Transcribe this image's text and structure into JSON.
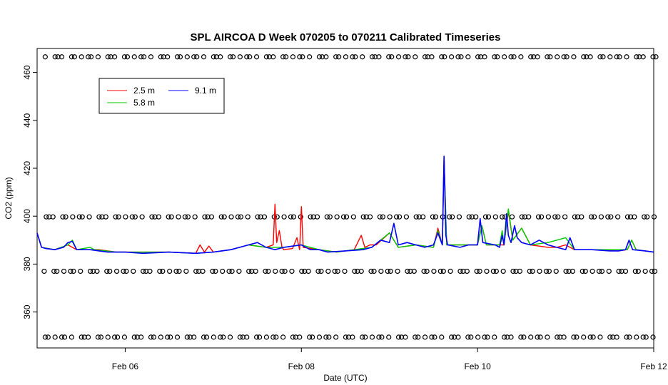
{
  "chart_data": {
    "type": "line",
    "title": "SPL AIRCOA D  Week 070205 to 070211  Calibrated Timeseries",
    "xlabel": "Date (UTC)",
    "ylabel": "CO2 (ppm)",
    "xlim": [
      5.0,
      12.0
    ],
    "ylim": [
      345,
      470
    ],
    "x_ticks": [
      {
        "value": 6,
        "label": "Feb 06"
      },
      {
        "value": 8,
        "label": "Feb 08"
      },
      {
        "value": 10,
        "label": "Feb 10"
      },
      {
        "value": 12,
        "label": "Feb 12"
      }
    ],
    "y_ticks": [
      360,
      380,
      400,
      420,
      440,
      460
    ],
    "legend": {
      "position": "top-left",
      "entries": [
        {
          "label": "2.5 m",
          "color": "#ff0000"
        },
        {
          "label": "5.8 m",
          "color": "#00cc00"
        },
        {
          "label": "9.1 m",
          "color": "#0000ff"
        }
      ]
    },
    "calibration_levels": [
      466.5,
      399.7,
      377.0,
      349.5
    ],
    "calibration_x_start": 5.08,
    "calibration_x_end": 12.0,
    "calibration_x_step": 0.1,
    "series": [
      {
        "name": "2.5 m",
        "color": "#ff0000",
        "points": [
          [
            5.0,
            393
          ],
          [
            5.05,
            387
          ],
          [
            5.2,
            386
          ],
          [
            5.35,
            388
          ],
          [
            5.45,
            386
          ],
          [
            5.7,
            386
          ],
          [
            5.9,
            385
          ],
          [
            6.2,
            385
          ],
          [
            6.5,
            385
          ],
          [
            6.8,
            384.5
          ],
          [
            6.85,
            388
          ],
          [
            6.9,
            385
          ],
          [
            6.95,
            387.5
          ],
          [
            7.0,
            385
          ],
          [
            7.2,
            386
          ],
          [
            7.4,
            388
          ],
          [
            7.6,
            387
          ],
          [
            7.68,
            388
          ],
          [
            7.7,
            405
          ],
          [
            7.72,
            389
          ],
          [
            7.75,
            394
          ],
          [
            7.78,
            387
          ],
          [
            7.8,
            386
          ],
          [
            7.9,
            386.5
          ],
          [
            7.95,
            391
          ],
          [
            7.98,
            386
          ],
          [
            8.0,
            404
          ],
          [
            8.02,
            387
          ],
          [
            8.2,
            386
          ],
          [
            8.4,
            385
          ],
          [
            8.6,
            386
          ],
          [
            8.68,
            392
          ],
          [
            8.72,
            387
          ],
          [
            8.78,
            388
          ],
          [
            8.85,
            388
          ],
          [
            9.0,
            393
          ],
          [
            9.1,
            387
          ],
          [
            9.3,
            388
          ],
          [
            9.5,
            387
          ],
          [
            9.55,
            395
          ],
          [
            9.6,
            388
          ],
          [
            9.62,
            425
          ],
          [
            9.65,
            388
          ],
          [
            10.0,
            388
          ],
          [
            10.05,
            396
          ],
          [
            10.1,
            388
          ],
          [
            10.3,
            388
          ],
          [
            10.35,
            402
          ],
          [
            10.4,
            390
          ],
          [
            10.5,
            395
          ],
          [
            10.6,
            388
          ],
          [
            10.8,
            387
          ],
          [
            10.9,
            387
          ],
          [
            11.0,
            388
          ],
          [
            11.1,
            386
          ],
          [
            11.3,
            386
          ],
          [
            11.6,
            385.5
          ],
          [
            11.7,
            386
          ],
          [
            11.75,
            390
          ],
          [
            11.8,
            386
          ],
          [
            12.0,
            385
          ]
        ]
      },
      {
        "name": "5.8 m",
        "color": "#00cc00",
        "points": [
          [
            5.0,
            393
          ],
          [
            5.05,
            387
          ],
          [
            5.2,
            386
          ],
          [
            5.35,
            388
          ],
          [
            5.4,
            390
          ],
          [
            5.45,
            386
          ],
          [
            5.6,
            387
          ],
          [
            5.65,
            386
          ],
          [
            5.9,
            385
          ],
          [
            6.2,
            385
          ],
          [
            6.5,
            385
          ],
          [
            6.8,
            384.5
          ],
          [
            7.0,
            385
          ],
          [
            7.2,
            386
          ],
          [
            7.4,
            388
          ],
          [
            7.6,
            387
          ],
          [
            7.8,
            387
          ],
          [
            8.0,
            388
          ],
          [
            8.2,
            386
          ],
          [
            8.4,
            385
          ],
          [
            8.6,
            386
          ],
          [
            8.8,
            387
          ],
          [
            9.0,
            393
          ],
          [
            9.1,
            387
          ],
          [
            9.3,
            388
          ],
          [
            9.5,
            387
          ],
          [
            9.55,
            394
          ],
          [
            9.6,
            388
          ],
          [
            9.62,
            424
          ],
          [
            9.65,
            388
          ],
          [
            10.0,
            388
          ],
          [
            10.05,
            396
          ],
          [
            10.1,
            388
          ],
          [
            10.25,
            388
          ],
          [
            10.28,
            394
          ],
          [
            10.3,
            388
          ],
          [
            10.35,
            403
          ],
          [
            10.4,
            390
          ],
          [
            10.5,
            395
          ],
          [
            10.6,
            388
          ],
          [
            10.8,
            389
          ],
          [
            11.0,
            391
          ],
          [
            11.1,
            386
          ],
          [
            11.3,
            386
          ],
          [
            11.6,
            386
          ],
          [
            11.7,
            386
          ],
          [
            11.75,
            390
          ],
          [
            11.8,
            386
          ],
          [
            12.0,
            385
          ]
        ]
      },
      {
        "name": "9.1 m",
        "color": "#0000ff",
        "points": [
          [
            5.0,
            393
          ],
          [
            5.05,
            387
          ],
          [
            5.1,
            386.5
          ],
          [
            5.2,
            386
          ],
          [
            5.3,
            387
          ],
          [
            5.35,
            389
          ],
          [
            5.4,
            389.5
          ],
          [
            5.45,
            386
          ],
          [
            5.6,
            386
          ],
          [
            5.8,
            385
          ],
          [
            6.0,
            385
          ],
          [
            6.2,
            384.5
          ],
          [
            6.5,
            385
          ],
          [
            6.8,
            384.5
          ],
          [
            7.0,
            385
          ],
          [
            7.2,
            386
          ],
          [
            7.3,
            387
          ],
          [
            7.4,
            388
          ],
          [
            7.5,
            389
          ],
          [
            7.6,
            387
          ],
          [
            7.7,
            386
          ],
          [
            7.8,
            387
          ],
          [
            7.9,
            387.5
          ],
          [
            8.0,
            388
          ],
          [
            8.1,
            386
          ],
          [
            8.2,
            386
          ],
          [
            8.3,
            385
          ],
          [
            8.5,
            385.5
          ],
          [
            8.7,
            386
          ],
          [
            8.8,
            387
          ],
          [
            8.9,
            390
          ],
          [
            9.0,
            389
          ],
          [
            9.05,
            397
          ],
          [
            9.1,
            388
          ],
          [
            9.2,
            389
          ],
          [
            9.3,
            388
          ],
          [
            9.4,
            387
          ],
          [
            9.5,
            388
          ],
          [
            9.55,
            393
          ],
          [
            9.6,
            388
          ],
          [
            9.62,
            425
          ],
          [
            9.64,
            392
          ],
          [
            9.66,
            388
          ],
          [
            9.8,
            387
          ],
          [
            9.9,
            388
          ],
          [
            10.0,
            388
          ],
          [
            10.03,
            399
          ],
          [
            10.06,
            389
          ],
          [
            10.2,
            388
          ],
          [
            10.25,
            387
          ],
          [
            10.28,
            392
          ],
          [
            10.3,
            388
          ],
          [
            10.33,
            401
          ],
          [
            10.35,
            392
          ],
          [
            10.38,
            389
          ],
          [
            10.42,
            396
          ],
          [
            10.45,
            391
          ],
          [
            10.5,
            389
          ],
          [
            10.6,
            388
          ],
          [
            10.7,
            390
          ],
          [
            10.8,
            388
          ],
          [
            10.9,
            387
          ],
          [
            11.0,
            386
          ],
          [
            11.05,
            391
          ],
          [
            11.1,
            386
          ],
          [
            11.3,
            386
          ],
          [
            11.5,
            385.5
          ],
          [
            11.6,
            385.5
          ],
          [
            11.68,
            386
          ],
          [
            11.72,
            390
          ],
          [
            11.76,
            386
          ],
          [
            11.9,
            385.5
          ],
          [
            12.0,
            385
          ]
        ]
      }
    ]
  }
}
